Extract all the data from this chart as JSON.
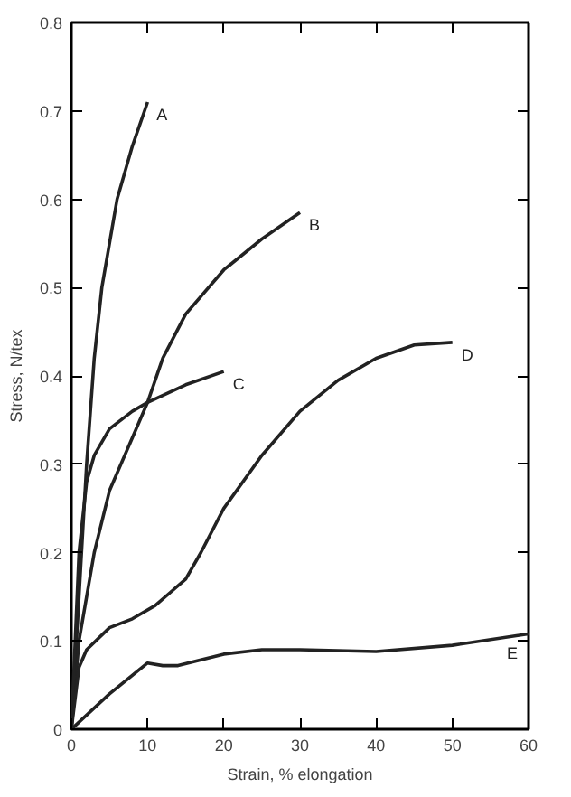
{
  "chart_data": {
    "type": "line",
    "xlabel": "Strain, % elongation",
    "ylabel": "Stress, N/tex",
    "xlim": [
      0,
      60
    ],
    "ylim": [
      0,
      0.8
    ],
    "xticks": [
      0,
      10,
      20,
      30,
      40,
      50,
      60
    ],
    "yticks": [
      0,
      0.1,
      0.2,
      0.3,
      0.4,
      0.5,
      0.6,
      0.7,
      0.8
    ],
    "line_style": "solid",
    "series": [
      {
        "name": "A",
        "color": "#222222",
        "x": [
          0,
          1,
          2,
          3,
          4,
          6,
          8,
          10
        ],
        "values": [
          0,
          0.15,
          0.3,
          0.42,
          0.5,
          0.6,
          0.66,
          0.71
        ]
      },
      {
        "name": "B",
        "color": "#222222",
        "x": [
          0,
          1,
          3,
          5,
          8,
          10,
          12,
          15,
          20,
          25,
          30
        ],
        "values": [
          0,
          0.1,
          0.2,
          0.27,
          0.33,
          0.37,
          0.42,
          0.47,
          0.52,
          0.555,
          0.585
        ]
      },
      {
        "name": "C",
        "color": "#222222",
        "x": [
          0,
          0.5,
          1,
          2,
          3,
          5,
          8,
          10,
          15,
          20
        ],
        "values": [
          0,
          0.1,
          0.2,
          0.28,
          0.31,
          0.34,
          0.36,
          0.37,
          0.39,
          0.405
        ]
      },
      {
        "name": "D",
        "color": "#222222",
        "x": [
          0,
          1,
          2,
          5,
          8,
          11,
          13,
          15,
          17,
          20,
          25,
          30,
          35,
          40,
          45,
          50
        ],
        "values": [
          0,
          0.07,
          0.09,
          0.115,
          0.125,
          0.14,
          0.155,
          0.17,
          0.2,
          0.25,
          0.31,
          0.36,
          0.395,
          0.42,
          0.435,
          0.438
        ]
      },
      {
        "name": "E",
        "color": "#222222",
        "x": [
          0,
          5,
          10,
          12,
          14,
          20,
          25,
          30,
          40,
          50,
          60
        ],
        "values": [
          0,
          0.04,
          0.075,
          0.072,
          0.072,
          0.085,
          0.09,
          0.09,
          0.088,
          0.095,
          0.108
        ]
      }
    ]
  }
}
